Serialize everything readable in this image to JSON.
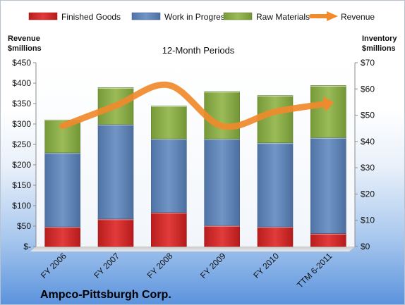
{
  "company": "Ampco-Pittsburgh Corp.",
  "chart_data": {
    "type": "bar",
    "stacked": true,
    "title": "12-Month Periods",
    "categories": [
      "FY 2006",
      "FY 2007",
      "FY 2008",
      "FY 2009",
      "FY 2010",
      "TTM 6-2011"
    ],
    "series": [
      {
        "name": "Finished Goods",
        "axis": "inventory",
        "color": "#d52a2a",
        "values": [
          7.5,
          10.5,
          13.0,
          8.0,
          7.5,
          5.0
        ]
      },
      {
        "name": "Work in Progress",
        "axis": "inventory",
        "color": "#5f85b8",
        "values": [
          28.2,
          36.0,
          28.0,
          33.0,
          32.0,
          36.5
        ]
      },
      {
        "name": "Raw Materials",
        "axis": "inventory",
        "color": "#8aab48",
        "values": [
          12.5,
          14.0,
          12.5,
          18.0,
          18.0,
          19.8
        ]
      },
      {
        "name": "Revenue",
        "axis": "revenue",
        "type": "line",
        "color": "#f08a2c",
        "values": [
          295,
          345,
          395,
          295,
          330,
          350
        ]
      }
    ],
    "left_axis": {
      "label_line1": "Revenue",
      "label_line2": "$millions",
      "range": [
        0,
        450
      ],
      "ticks": [
        0,
        50,
        100,
        150,
        200,
        250,
        300,
        350,
        400,
        450
      ],
      "tick_labels": [
        "$-",
        "$50",
        "$100",
        "$150",
        "$200",
        "$250",
        "$300",
        "$350",
        "$400",
        "$450"
      ]
    },
    "right_axis": {
      "label_line1": "Inventory",
      "label_line2": "$millions",
      "range": [
        0,
        70
      ],
      "ticks": [
        0,
        10,
        20,
        30,
        40,
        50,
        60,
        70
      ],
      "tick_labels": [
        "$0",
        "$10",
        "$20",
        "$30",
        "$40",
        "$50",
        "$60",
        "$70"
      ]
    },
    "legend_position": "top",
    "grid": false
  }
}
